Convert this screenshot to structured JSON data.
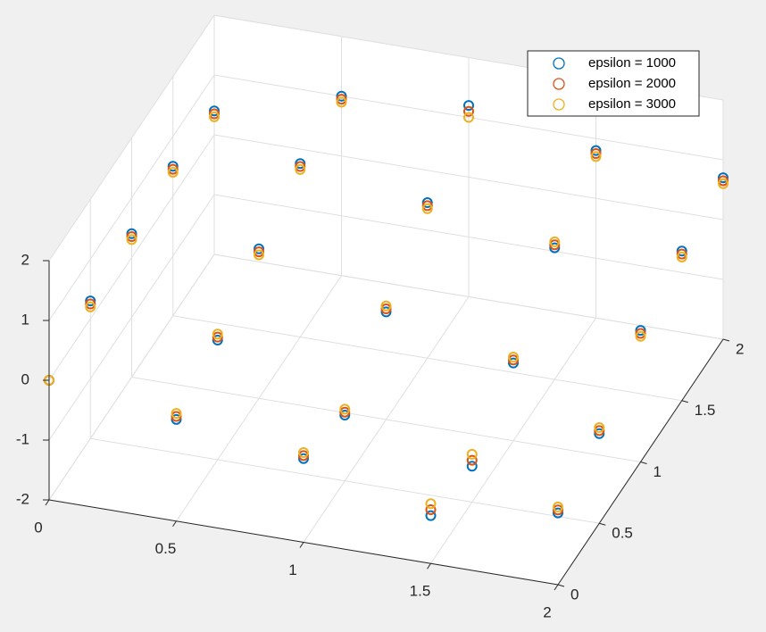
{
  "chart_data": {
    "type": "scatter3d",
    "xlim": [
      0,
      2
    ],
    "ylim": [
      0,
      2
    ],
    "zlim": [
      -2,
      2
    ],
    "xticks": [
      0,
      0.5,
      1,
      1.5,
      2
    ],
    "yticks": [
      0,
      0.5,
      1,
      1.5,
      2
    ],
    "zticks": [
      -2,
      -1,
      0,
      1,
      2
    ],
    "grid": true,
    "legend_location": "northeast",
    "series": [
      {
        "name": "epsilon = 1000",
        "color": "#0072BD",
        "x": [
          0,
          0.5,
          1,
          1.5,
          2,
          0,
          0.5,
          1,
          1.5,
          2,
          0,
          0.5,
          1,
          1.5,
          2,
          0,
          0.5,
          1,
          1.5,
          2,
          0,
          0.5,
          1,
          1.5,
          2
        ],
        "y": [
          0,
          0,
          0,
          0,
          0,
          0.5,
          0.5,
          0.5,
          0.5,
          0.5,
          1,
          1,
          1,
          1,
          1,
          1.5,
          1.5,
          1.5,
          1.5,
          1.5,
          2,
          2,
          2,
          2,
          2
        ],
        "z": [
          0,
          -0.3,
          -0.6,
          -1.2,
          -0.8,
          0.3,
          0,
          -0.9,
          -1.4,
          -0.5,
          0.4,
          0.5,
          -0.2,
          -0.7,
          0.2,
          0.5,
          0.9,
          0.6,
          0.2,
          0.5,
          0.4,
          1.0,
          1.2,
          0.8,
          0.7
        ]
      },
      {
        "name": "epsilon = 2000",
        "color": "#D95319",
        "x": [
          0,
          0.5,
          1,
          1.5,
          2,
          0,
          0.5,
          1,
          1.5,
          2,
          0,
          0.5,
          1,
          1.5,
          2,
          0,
          0.5,
          1,
          1.5,
          2,
          0,
          0.5,
          1,
          1.5,
          2
        ],
        "y": [
          0,
          0,
          0,
          0,
          0,
          0.5,
          0.5,
          0.5,
          0.5,
          0.5,
          1,
          1,
          1,
          1,
          1,
          1.5,
          1.5,
          1.5,
          1.5,
          1.5,
          2,
          2,
          2,
          2,
          2
        ],
        "z": [
          0,
          -0.25,
          -0.55,
          -1.1,
          -0.75,
          0.25,
          0.05,
          -0.85,
          -1.3,
          -0.45,
          0.35,
          0.45,
          -0.15,
          -0.65,
          0.15,
          0.45,
          0.85,
          0.55,
          0.25,
          0.45,
          0.35,
          0.95,
          1.1,
          0.75,
          0.65
        ]
      },
      {
        "name": "epsilon = 3000",
        "color": "#EDB120",
        "x": [
          0,
          0.5,
          1,
          1.5,
          2,
          0,
          0.5,
          1,
          1.5,
          2,
          0,
          0.5,
          1,
          1.5,
          2,
          0,
          0.5,
          1,
          1.5,
          2,
          0,
          0.5,
          1,
          1.5,
          2
        ],
        "y": [
          0,
          0,
          0,
          0,
          0,
          0.5,
          0.5,
          0.5,
          0.5,
          0.5,
          1,
          1,
          1,
          1,
          1,
          1.5,
          1.5,
          1.5,
          1.5,
          1.5,
          2,
          2,
          2,
          2,
          2
        ],
        "z": [
          0,
          -0.2,
          -0.5,
          -1.0,
          -0.7,
          0.2,
          0.1,
          -0.8,
          -1.2,
          -0.4,
          0.3,
          0.4,
          -0.1,
          -0.6,
          0.1,
          0.4,
          0.8,
          0.5,
          0.3,
          0.4,
          0.3,
          0.9,
          1.0,
          0.7,
          0.6
        ]
      }
    ]
  }
}
